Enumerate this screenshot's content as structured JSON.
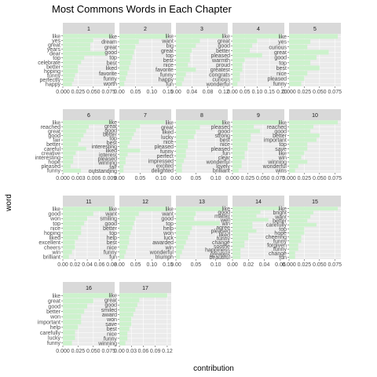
{
  "chart_data": {
    "type": "bar",
    "title": "Most Commons Words in Each Chapter",
    "xlabel": "contribution",
    "ylabel": "word",
    "bar_color": "#ccf2cc",
    "panel_bg": "#ebebeb",
    "strip_bg": "#d9d9d9",
    "grid_color": "#ffffff",
    "panels": [
      {
        "chapter": "1",
        "xmax": 0.085,
        "ticks": [
          {
            "v": 0.0,
            "label": "0.000"
          },
          {
            "v": 0.025,
            "label": "0.025"
          },
          {
            "v": 0.05,
            "label": "0.050"
          },
          {
            "v": 0.075,
            "label": "0.075"
          }
        ],
        "words": [
          "like",
          "yes",
          "great",
          "years",
          "dear",
          "top",
          "celebrate",
          "better",
          "hoping",
          "funny",
          "perfectly",
          "happy"
        ],
        "values": [
          0.08,
          0.05,
          0.045,
          0.045,
          0.07,
          0.035,
          0.03,
          0.025,
          0.025,
          0.02,
          0.018,
          0.015
        ]
      },
      {
        "chapter": "2",
        "xmax": 0.16,
        "ticks": [
          {
            "v": 0.0,
            "label": "0.00"
          },
          {
            "v": 0.05,
            "label": "0.05"
          },
          {
            "v": 0.1,
            "label": "0.10"
          },
          {
            "v": 0.15,
            "label": "0.15"
          }
        ],
        "words": [
          "like",
          "dream",
          "great",
          "good",
          "top",
          "best",
          "liked",
          "favorite",
          "funny",
          "worth"
        ],
        "values": [
          0.15,
          0.06,
          0.05,
          0.045,
          0.04,
          0.035,
          0.03,
          0.025,
          0.02,
          0.015
        ]
      },
      {
        "chapter": "3",
        "xmax": 0.13,
        "ticks": [
          {
            "v": 0.0,
            "label": "0.00"
          },
          {
            "v": 0.04,
            "label": "0.04"
          },
          {
            "v": 0.08,
            "label": "0.08"
          },
          {
            "v": 0.12,
            "label": "0.12"
          }
        ],
        "words": [
          "like",
          "want",
          "big",
          "great",
          "top",
          "best",
          "nice",
          "favorite",
          "funny",
          "happy",
          "fun"
        ],
        "values": [
          0.12,
          0.06,
          0.05,
          0.04,
          0.035,
          0.035,
          0.03,
          0.05,
          0.025,
          0.02,
          0.015
        ]
      },
      {
        "chapter": "4",
        "xmax": 0.21,
        "ticks": [
          {
            "v": 0.0,
            "label": "0.00"
          },
          {
            "v": 0.05,
            "label": "0.05"
          },
          {
            "v": 0.1,
            "label": "0.10"
          },
          {
            "v": 0.15,
            "label": "0.15"
          },
          {
            "v": 0.2,
            "label": "0.20"
          }
        ],
        "words": [
          "like",
          "great",
          "good",
          "better",
          "pleased",
          "warmth",
          "proud",
          "greatest",
          "congrats",
          "curious",
          "wonderful"
        ],
        "values": [
          0.2,
          0.1,
          0.08,
          0.07,
          0.12,
          0.05,
          0.04,
          0.04,
          0.03,
          0.03,
          0.02
        ]
      },
      {
        "chapter": "5",
        "xmax": 0.085,
        "ticks": [
          {
            "v": 0.0,
            "label": "0.000"
          },
          {
            "v": 0.025,
            "label": "0.025"
          },
          {
            "v": 0.05,
            "label": "0.050"
          },
          {
            "v": 0.075,
            "label": "0.075"
          }
        ],
        "words": [
          "like",
          "yes",
          "curious",
          "great",
          "good",
          "top",
          "best",
          "nice",
          "pleased",
          "funny"
        ],
        "values": [
          0.08,
          0.035,
          0.03,
          0.065,
          0.045,
          0.035,
          0.05,
          0.03,
          0.025,
          0.02
        ]
      },
      {
        "chapter": "6",
        "xmax": 0.01,
        "ticks": [
          {
            "v": 0.0,
            "label": "0.000"
          },
          {
            "v": 0.003,
            "label": "0.003"
          },
          {
            "v": 0.006,
            "label": "0.006"
          },
          {
            "v": 0.009,
            "label": "0.009"
          }
        ],
        "words": [
          "like",
          "reached",
          "great",
          "good",
          "fair",
          "better",
          "careful",
          "creative",
          "interesting",
          "hope",
          "pleased",
          "funny"
        ],
        "values": [
          0.0095,
          0.005,
          0.0045,
          0.004,
          0.0035,
          0.003,
          0.0045,
          0.0025,
          0.002,
          0.002,
          0.0015,
          0.0035
        ]
      },
      {
        "chapter": "7",
        "xmax": 0.125,
        "ticks": [
          {
            "v": 0.0,
            "label": "0.00"
          },
          {
            "v": 0.05,
            "label": "0.05"
          },
          {
            "v": 0.1,
            "label": "0.10"
          }
        ],
        "words": [
          "like",
          "great",
          "good",
          "better",
          "top",
          "best",
          "interesting",
          "liked",
          "interest",
          "pleased",
          "winning",
          "fair",
          "outstanding"
        ],
        "values": [
          0.11,
          0.05,
          0.04,
          0.035,
          0.03,
          0.025,
          0.02,
          0.05,
          0.02,
          0.015,
          0.015,
          0.01,
          0.01
        ]
      },
      {
        "chapter": "8",
        "xmax": 0.13,
        "ticks": [
          {
            "v": 0.0,
            "label": "0.00"
          },
          {
            "v": 0.05,
            "label": "0.05"
          },
          {
            "v": 0.1,
            "label": "0.10"
          }
        ],
        "words": [
          "like",
          "great",
          "liked",
          "lucky",
          "nice",
          "pleased",
          "funny",
          "perfect",
          "impressed",
          "excited",
          "delighted"
        ],
        "values": [
          0.12,
          0.06,
          0.05,
          0.045,
          0.03,
          0.03,
          0.025,
          0.025,
          0.02,
          0.015,
          0.015
        ]
      },
      {
        "chapter": "9",
        "xmax": 0.085,
        "ticks": [
          {
            "v": 0.0,
            "label": "0.000"
          },
          {
            "v": 0.025,
            "label": "0.025"
          },
          {
            "v": 0.05,
            "label": "0.050"
          },
          {
            "v": 0.075,
            "label": "0.075"
          }
        ],
        "words": [
          "like",
          "pleased",
          "good",
          "strong",
          "best",
          "nice",
          "pleased",
          "fun",
          "clear",
          "wonderful",
          "lovely",
          "brilliant"
        ],
        "values": [
          0.08,
          0.035,
          0.045,
          0.03,
          0.03,
          0.025,
          0.025,
          0.02,
          0.02,
          0.015,
          0.015,
          0.01
        ]
      },
      {
        "chapter": "10",
        "xmax": 0.085,
        "ticks": [
          {
            "v": 0.0,
            "label": "0.000"
          },
          {
            "v": 0.025,
            "label": "0.025"
          },
          {
            "v": 0.05,
            "label": "0.050"
          },
          {
            "v": 0.075,
            "label": "0.075"
          }
        ],
        "words": [
          "like",
          "reached",
          "good",
          "better",
          "important",
          "top",
          "save",
          "like",
          "win",
          "winning",
          "wonderful",
          "wins"
        ],
        "values": [
          0.08,
          0.04,
          0.035,
          0.05,
          0.045,
          0.03,
          0.03,
          0.025,
          0.02,
          0.03,
          0.015,
          0.01
        ]
      },
      {
        "chapter": "11",
        "xmax": 0.085,
        "ticks": [
          {
            "v": 0.0,
            "label": "0.00"
          },
          {
            "v": 0.02,
            "label": "0.02"
          },
          {
            "v": 0.04,
            "label": "0.04"
          },
          {
            "v": 0.06,
            "label": "0.06"
          },
          {
            "v": 0.08,
            "label": "0.08"
          }
        ],
        "words": [
          "like",
          "good",
          "won",
          "top",
          "nice",
          "hoping",
          "liked",
          "excellent",
          "cheers",
          "win",
          "brilliant"
        ],
        "values": [
          0.08,
          0.05,
          0.04,
          0.035,
          0.03,
          0.03,
          0.025,
          0.02,
          0.02,
          0.015,
          0.01
        ]
      },
      {
        "chapter": "12",
        "xmax": 0.16,
        "ticks": [
          {
            "v": 0.0,
            "label": "0.00"
          },
          {
            "v": 0.05,
            "label": "0.05"
          },
          {
            "v": 0.1,
            "label": "0.10"
          },
          {
            "v": 0.15,
            "label": "0.15"
          }
        ],
        "words": [
          "like",
          "want",
          "smiling",
          "good",
          "better",
          "top",
          "help",
          "best",
          "nice",
          "funny",
          "fun"
        ],
        "values": [
          0.15,
          0.06,
          0.05,
          0.045,
          0.04,
          0.035,
          0.03,
          0.03,
          0.025,
          0.02,
          0.015
        ]
      },
      {
        "chapter": "13",
        "xmax": 0.13,
        "ticks": [
          {
            "v": 0.0,
            "label": "0.00"
          },
          {
            "v": 0.05,
            "label": "0.05"
          },
          {
            "v": 0.1,
            "label": "0.10"
          }
        ],
        "words": [
          "like",
          "want",
          "good",
          "top",
          "help",
          "won",
          "luck",
          "awarded",
          "win",
          "wonderful",
          "triumph"
        ],
        "values": [
          0.12,
          0.05,
          0.045,
          0.11,
          0.04,
          0.035,
          0.03,
          0.025,
          0.02,
          0.015,
          0.01
        ]
      },
      {
        "chapter": "14",
        "xmax": 0.065,
        "ticks": [
          {
            "v": 0.0,
            "label": "0.00"
          },
          {
            "v": 0.02,
            "label": "0.02"
          },
          {
            "v": 0.04,
            "label": "0.04"
          },
          {
            "v": 0.06,
            "label": "0.06"
          }
        ],
        "words": [
          "like",
          "good",
          "matter",
          "well",
          "win",
          "agree",
          "pleased",
          "liked",
          "funny",
          "change",
          "soothe",
          "happiness",
          "greatest",
          "beautiful"
        ],
        "values": [
          0.06,
          0.035,
          0.03,
          0.045,
          0.025,
          0.025,
          0.03,
          0.02,
          0.02,
          0.015,
          0.015,
          0.01,
          0.01,
          0.01
        ]
      },
      {
        "chapter": "15",
        "xmax": 0.085,
        "ticks": [
          {
            "v": 0.0,
            "label": "0.000"
          },
          {
            "v": 0.025,
            "label": "0.025"
          },
          {
            "v": 0.05,
            "label": "0.050"
          },
          {
            "v": 0.075,
            "label": "0.075"
          }
        ],
        "words": [
          "like",
          "bright",
          "want",
          "better",
          "carefully",
          "top",
          "hope",
          "cheering",
          "funny",
          "forgiven",
          "funny",
          "change",
          "fun"
        ],
        "values": [
          0.08,
          0.04,
          0.035,
          0.03,
          0.045,
          0.025,
          0.025,
          0.02,
          0.02,
          0.015,
          0.015,
          0.01,
          0.01
        ]
      },
      {
        "chapter": "16",
        "xmax": 0.085,
        "ticks": [
          {
            "v": 0.0,
            "label": "0.000"
          },
          {
            "v": 0.025,
            "label": "0.025"
          },
          {
            "v": 0.05,
            "label": "0.050"
          },
          {
            "v": 0.075,
            "label": "0.075"
          }
        ],
        "words": [
          "like",
          "great",
          "good",
          "better",
          "won",
          "important",
          "help",
          "carefully",
          "lucky",
          "funny"
        ],
        "values": [
          0.08,
          0.05,
          0.04,
          0.035,
          0.03,
          0.03,
          0.025,
          0.02,
          0.02,
          0.015
        ]
      },
      {
        "chapter": "17",
        "xmax": 0.13,
        "ticks": [
          {
            "v": 0.0,
            "label": "0.00"
          },
          {
            "v": 0.03,
            "label": "0.03"
          },
          {
            "v": 0.06,
            "label": "0.06"
          },
          {
            "v": 0.09,
            "label": "0.09"
          },
          {
            "v": 0.12,
            "label": "0.12"
          }
        ],
        "words": [
          "like",
          "great",
          "good",
          "smiled",
          "award",
          "won",
          "save",
          "best",
          "nice",
          "funny",
          "winning"
        ],
        "values": [
          0.12,
          0.05,
          0.045,
          0.04,
          0.035,
          0.03,
          0.03,
          0.025,
          0.02,
          0.02,
          0.015
        ]
      }
    ]
  }
}
